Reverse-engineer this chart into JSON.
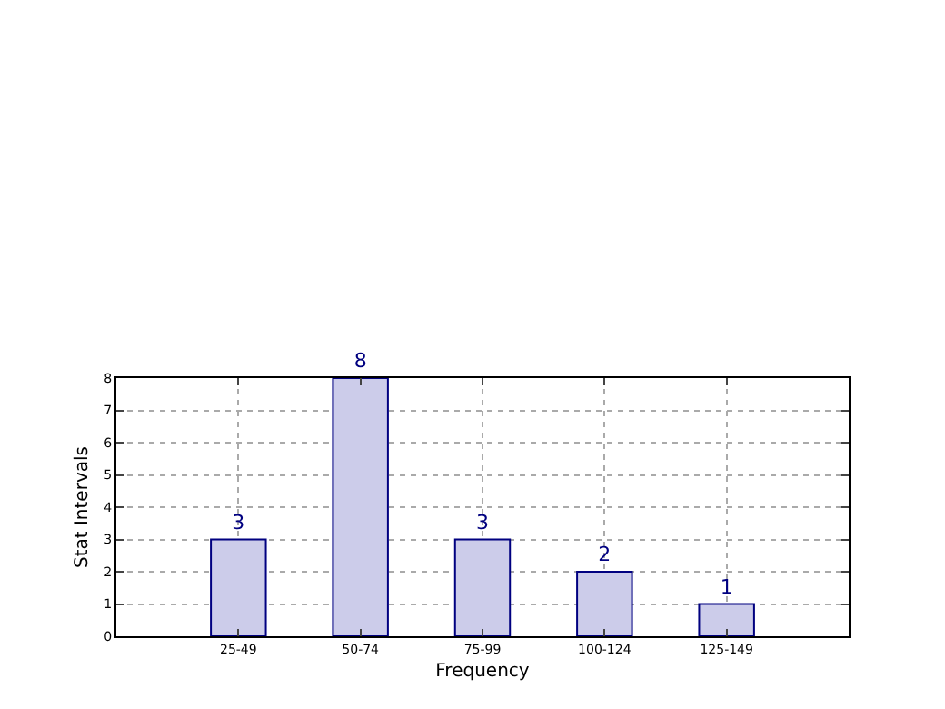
{
  "chart_data": {
    "type": "bar",
    "xlabel": "Frequency",
    "ylabel": "Stat Intervals",
    "categories": [
      "25-49",
      "50-74",
      "75-99",
      "100-124",
      "125-149"
    ],
    "values": [
      3,
      8,
      3,
      2,
      1
    ],
    "color": "#ccccea",
    "ylim": [
      0,
      8
    ],
    "yticks": [
      0,
      1,
      2,
      3,
      4,
      5,
      6,
      7,
      8
    ],
    "grid": true,
    "data_labels": true
  }
}
